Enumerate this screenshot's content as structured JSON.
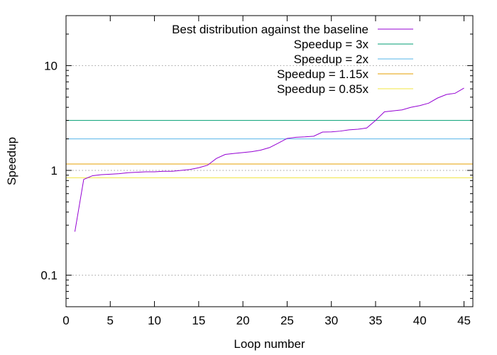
{
  "chart_data": {
    "type": "line",
    "xlabel": "Loop number",
    "ylabel": "Speedup",
    "xlim": [
      0,
      46
    ],
    "ylim": [
      0.05,
      30
    ],
    "yscale": "log",
    "x_ticks": [
      0,
      5,
      10,
      15,
      20,
      25,
      30,
      35,
      40,
      45
    ],
    "y_ticks": [
      0.1,
      1,
      10
    ],
    "y_tick_labels": [
      "0.1",
      "1",
      "10"
    ],
    "grid": "horizontal dotted at 0.1, 1, 10",
    "legend_position": "top-right",
    "series": [
      {
        "name": "Best distribution against the baseline",
        "color": "#9400d3",
        "x": [
          1,
          2,
          3,
          4,
          5,
          6,
          7,
          8,
          9,
          10,
          11,
          12,
          13,
          14,
          15,
          16,
          17,
          18,
          19,
          20,
          21,
          22,
          23,
          24,
          25,
          26,
          27,
          28,
          29,
          30,
          31,
          32,
          33,
          34,
          35,
          36,
          37,
          38,
          39,
          40,
          41,
          42,
          43,
          44,
          45
        ],
        "values": [
          0.26,
          0.82,
          0.89,
          0.91,
          0.92,
          0.93,
          0.95,
          0.96,
          0.97,
          0.97,
          0.98,
          0.98,
          1.0,
          1.02,
          1.06,
          1.12,
          1.3,
          1.42,
          1.45,
          1.48,
          1.51,
          1.56,
          1.65,
          1.82,
          2.02,
          2.07,
          2.09,
          2.12,
          2.32,
          2.33,
          2.37,
          2.44,
          2.47,
          2.54,
          3.0,
          3.62,
          3.7,
          3.78,
          4.0,
          4.15,
          4.38,
          4.9,
          5.3,
          5.45,
          6.1
        ]
      },
      {
        "name": "Speedup = 3x",
        "color": "#009e73",
        "hline": 3
      },
      {
        "name": "Speedup = 2x",
        "color": "#56b4e9",
        "hline": 2
      },
      {
        "name": "Speedup = 1.15x",
        "color": "#e69f00",
        "hline": 1.15
      },
      {
        "name": "Speedup = 0.85x",
        "color": "#f0e442",
        "hline": 0.85
      }
    ]
  }
}
